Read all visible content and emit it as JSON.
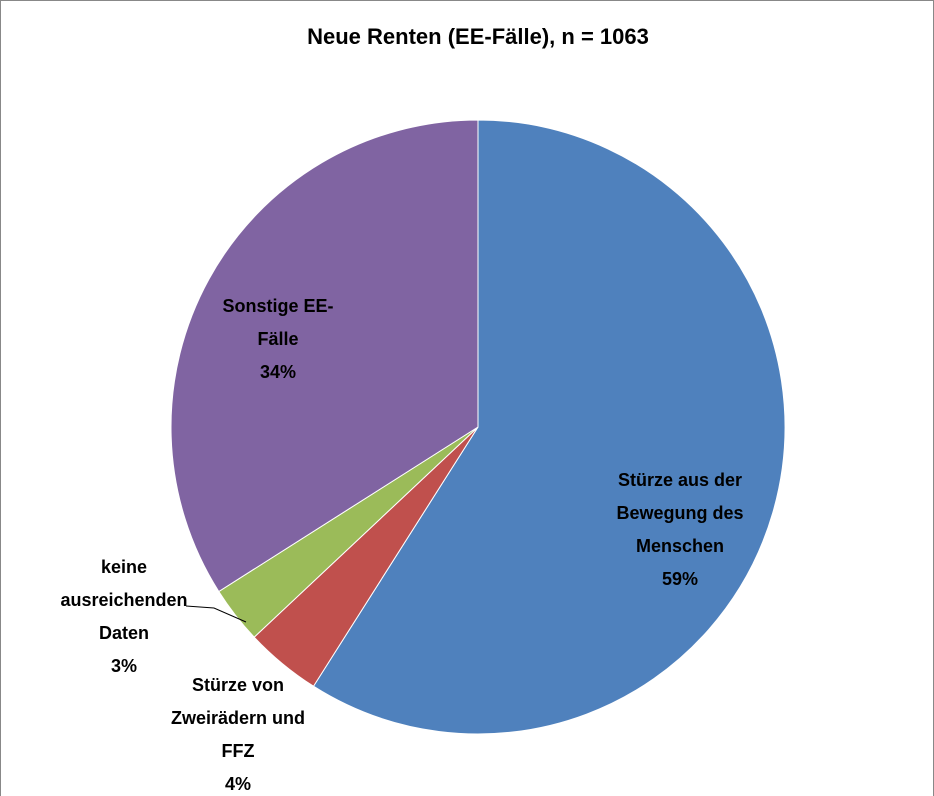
{
  "chart_data": {
    "type": "pie",
    "title": "Neue Renten (EE-Fälle), n = 1063",
    "categories": [
      "Stürze aus der Bewegung des Menschen",
      "Stürze von Zweirädern und FFZ",
      "keine ausreichenden Daten",
      "Sonstige EE-Fälle"
    ],
    "values": [
      59,
      4,
      3,
      34
    ],
    "value_labels": [
      "59%",
      "4%",
      "3%",
      "34%"
    ],
    "colors": [
      "#4f81bd",
      "#c0504d",
      "#9bbb59",
      "#8064a2"
    ]
  }
}
